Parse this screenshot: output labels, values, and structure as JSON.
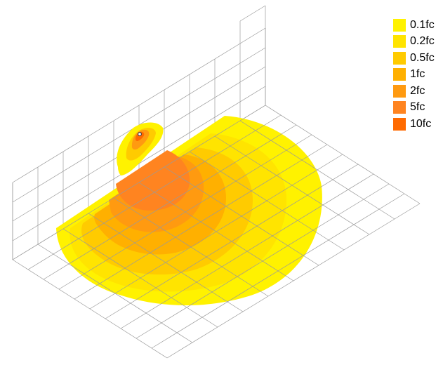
{
  "legend": {
    "items": [
      {
        "label": "0.1fc",
        "color": "#FFF200"
      },
      {
        "label": "0.2fc",
        "color": "#FFE400"
      },
      {
        "label": "0.5fc",
        "color": "#FFCB00"
      },
      {
        "label": "1fc",
        "color": "#FFB000"
      },
      {
        "label": "2fc",
        "color": "#FF9A10"
      },
      {
        "label": "5fc",
        "color": "#FF8420"
      },
      {
        "label": "10fc",
        "color": "#FF6A00"
      }
    ]
  },
  "fixture_marker_color": "#444444",
  "grid_color": "#9A9A9A"
}
